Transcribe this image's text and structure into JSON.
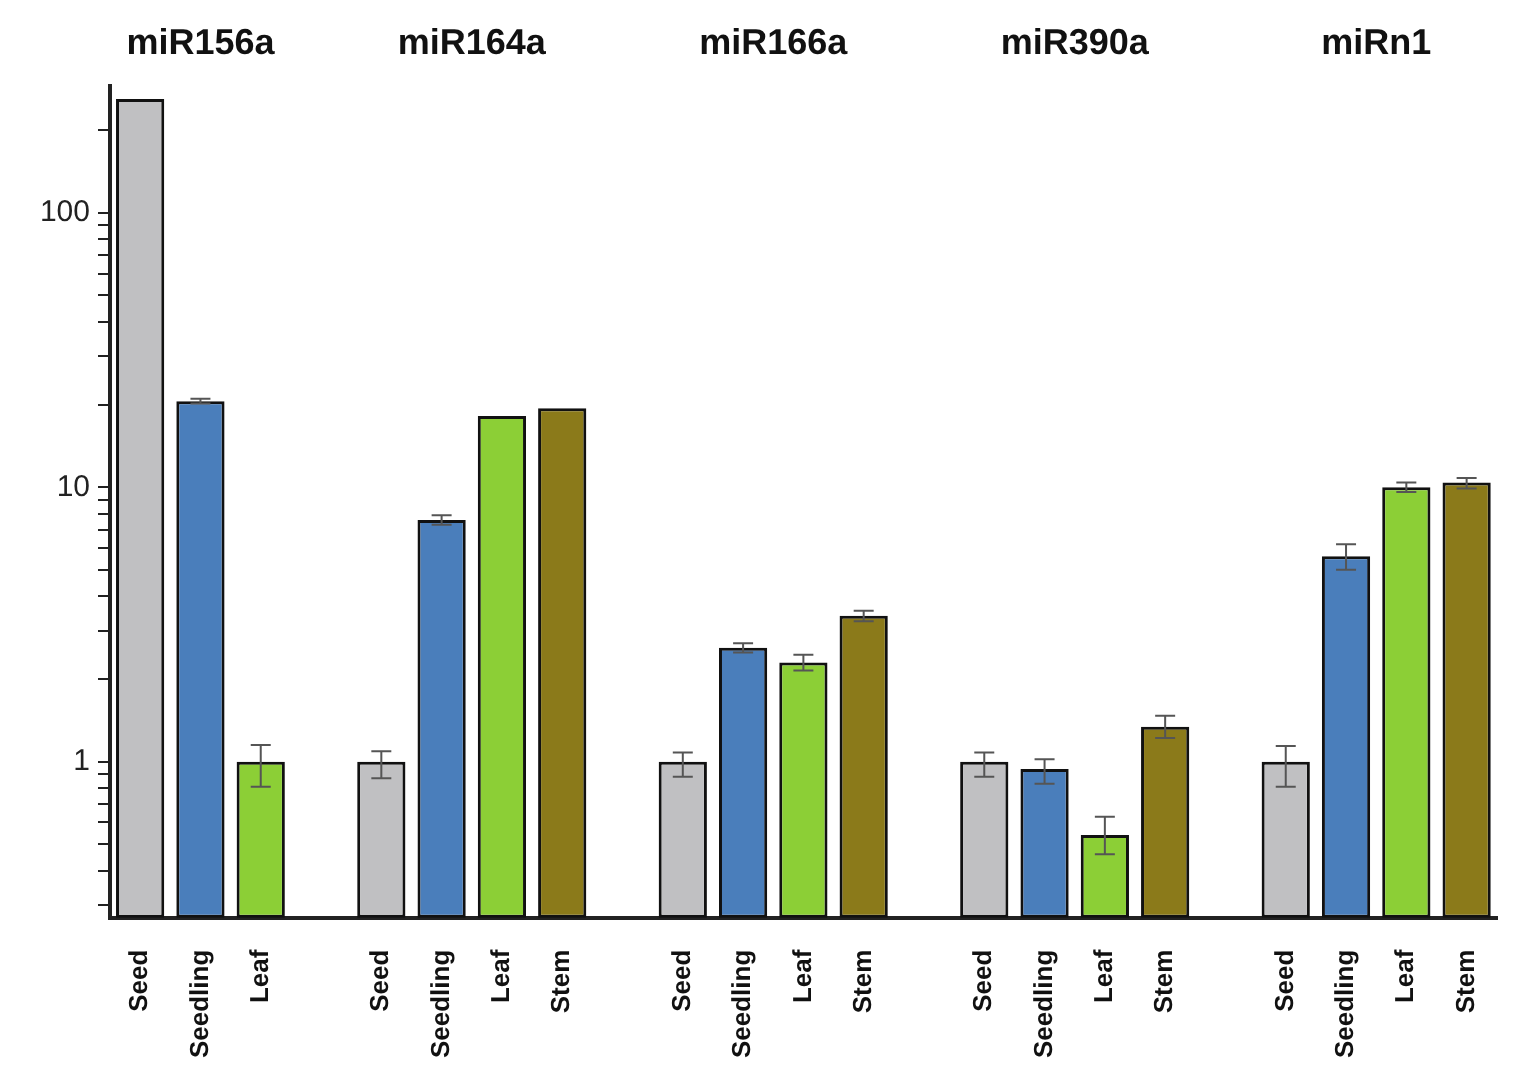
{
  "chart_data": {
    "type": "bar",
    "annotations": [
      "miR156a",
      "miR164a",
      "miR166a",
      "miR390a",
      "miRn1"
    ],
    "categories": [
      "Seed",
      "Seedling",
      "Leaf",
      null,
      "Seed",
      "Seedling",
      "Leaf",
      "Stem",
      null,
      "Seed",
      "Seedling",
      "Leaf",
      "Stem",
      null,
      "Seed",
      "Seedling",
      "Leaf",
      "Stem",
      null,
      "Seed",
      "Seedling",
      "Leaf",
      "Stem"
    ],
    "values": [
      260,
      20.6,
      1,
      null,
      1,
      7.6,
      18.2,
      19.4,
      null,
      1,
      2.6,
      2.3,
      3.4,
      null,
      1,
      0.94,
      0.54,
      1.34,
      null,
      1,
      5.6,
      10,
      10.4
    ],
    "colors": [
      "#c0c0c2",
      "#4a7ebb",
      "#8ccf36",
      null,
      "#c0c0c2",
      "#4a7ebb",
      "#8ccf36",
      "#8b7a1a",
      null,
      "#c0c0c2",
      "#4a7ebb",
      "#8ccf36",
      "#8b7a1a",
      null,
      "#c0c0c2",
      "#4a7ebb",
      "#8ccf36",
      "#8b7a1a",
      null,
      "#c0c0c2",
      "#4a7ebb",
      "#8ccf36",
      "#8b7a1a"
    ],
    "errors": [
      null,
      [
        20.2,
        21
      ],
      [
        0.81,
        1.15
      ],
      null,
      [
        0.87,
        1.09
      ],
      [
        7.3,
        7.9
      ],
      null,
      null,
      null,
      [
        0.88,
        1.08
      ],
      [
        2.5,
        2.7
      ],
      [
        2.15,
        2.45
      ],
      [
        3.25,
        3.55
      ],
      null,
      [
        0.88,
        1.08
      ],
      [
        0.83,
        1.02
      ],
      [
        0.46,
        0.63
      ],
      [
        1.22,
        1.47
      ],
      null,
      [
        0.81,
        1.14
      ],
      [
        5,
        6.2
      ],
      [
        9.6,
        10.4
      ],
      [
        9.9,
        10.8
      ]
    ],
    "log": "y",
    "ylim": [
      0.27,
      290
    ],
    "yticks": [
      {
        "value": 0.3,
        "label": null
      },
      {
        "value": 0.4,
        "label": null
      },
      {
        "value": 0.5,
        "label": null
      },
      {
        "value": 0.6,
        "label": null
      },
      {
        "value": 0.7,
        "label": null
      },
      {
        "value": 0.8,
        "label": null
      },
      {
        "value": 0.9,
        "label": null
      },
      1,
      {
        "value": 2,
        "label": null
      },
      {
        "value": 3,
        "label": null
      },
      {
        "value": 4,
        "label": null
      },
      {
        "value": 5,
        "label": null
      },
      {
        "value": 6,
        "label": null
      },
      {
        "value": 7,
        "label": null
      },
      {
        "value": 8,
        "label": null
      },
      {
        "value": 9,
        "label": null
      },
      10,
      {
        "value": 20,
        "label": null
      },
      {
        "value": 30,
        "label": null
      },
      {
        "value": 40,
        "label": null
      },
      {
        "value": 50,
        "label": null
      },
      {
        "value": 60,
        "label": null
      },
      {
        "value": 70,
        "label": null
      },
      {
        "value": 80,
        "label": null
      },
      {
        "value": 90,
        "label": null
      },
      100,
      {
        "value": 200,
        "label": null
      }
    ]
  }
}
